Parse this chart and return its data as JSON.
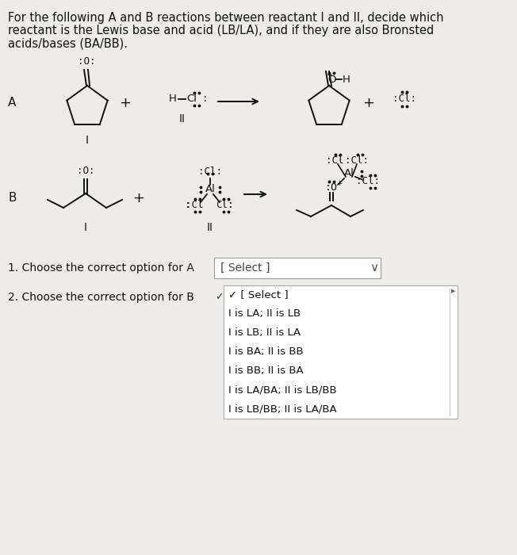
{
  "bg_color": "#eeece9",
  "title_lines": [
    "For the following A and B reactions between reactant I and II, decide which",
    "reactant is the Lewis base and acid (LB/LA), and if they are also Bronsted",
    "acids/bases (BA/BB)."
  ],
  "font_color": "#111111",
  "q1_text": "1. Choose the correct option for A",
  "q2_text": "2. Choose the correct option for B",
  "select_text": "[ Select ]",
  "dropdown_items": [
    "✓ [ Select ]",
    "I is LA; II is LB",
    "I is LB; II is LA",
    "I is BA; II is BB",
    "I is BB; II is BA",
    "I is LA/BA; II is LB/BB",
    "I is LB/BB; II is LA/BA"
  ]
}
